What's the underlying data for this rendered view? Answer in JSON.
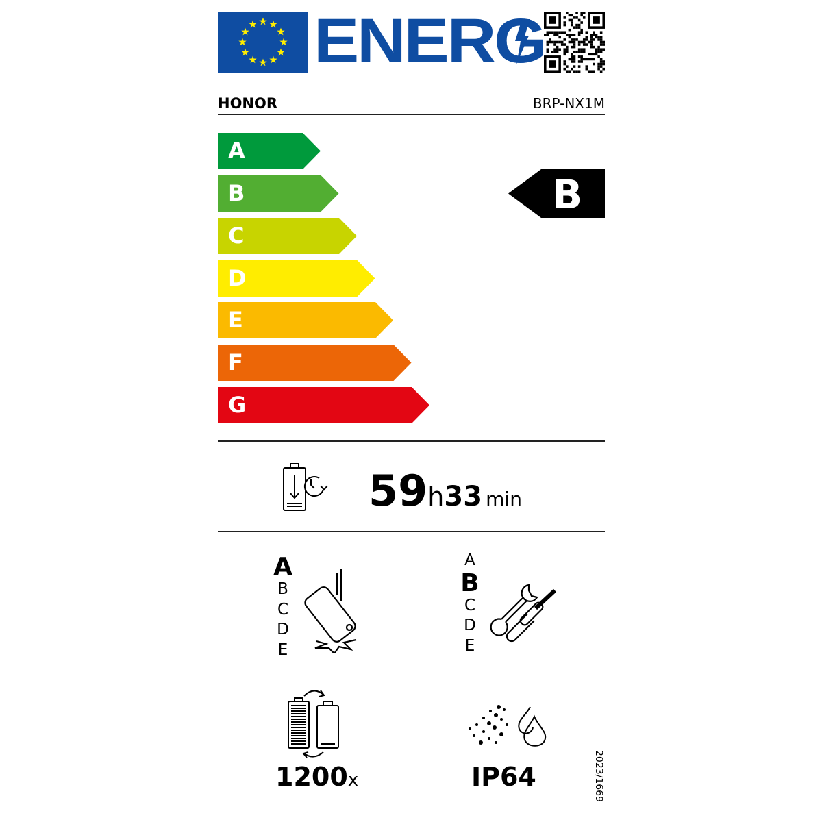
{
  "header": {
    "logo_text": "ENERG",
    "flag_icon": "eu-flag-icon",
    "qr_icon": "qr-code-icon"
  },
  "supplier": "HONOR",
  "model": "BRP-NX1M",
  "scale": {
    "classes": [
      {
        "label": "A",
        "color": "#009a3c"
      },
      {
        "label": "B",
        "color": "#52ae32"
      },
      {
        "label": "C",
        "color": "#c8d400"
      },
      {
        "label": "D",
        "color": "#ffed00"
      },
      {
        "label": "E",
        "color": "#fbba00"
      },
      {
        "label": "F",
        "color": "#ec6607"
      },
      {
        "label": "G",
        "color": "#e30613"
      }
    ],
    "rating": "B"
  },
  "endurance": {
    "hours": "59",
    "hours_unit": "h",
    "minutes": "33",
    "minutes_unit": "min",
    "icon": "battery-endurance-icon"
  },
  "drop_resistance": {
    "classes": [
      "A",
      "B",
      "C",
      "D",
      "E"
    ],
    "selected": "A",
    "icon": "phone-drop-icon"
  },
  "repairability": {
    "classes": [
      "A",
      "B",
      "C",
      "D",
      "E"
    ],
    "selected": "B",
    "icon": "repair-tools-icon"
  },
  "battery_cycles": {
    "value": "1200",
    "unit": "x",
    "icon": "battery-cycles-icon"
  },
  "ingress": {
    "value": "IP64",
    "icon": "dust-water-icon"
  },
  "regulation": "2023/1669"
}
